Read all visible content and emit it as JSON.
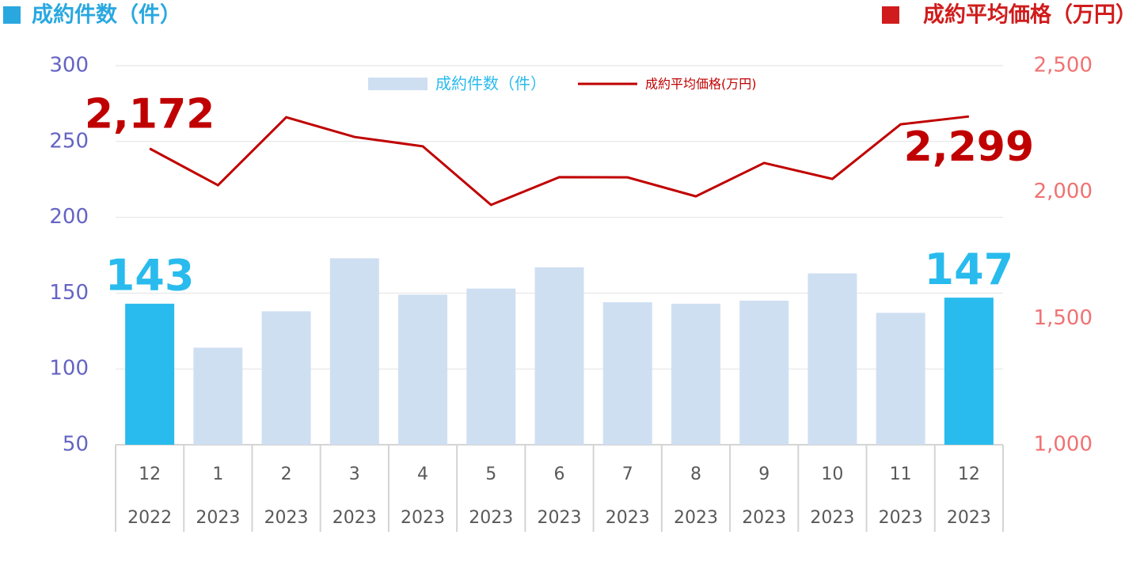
{
  "chart_data": {
    "type": "bar-line",
    "y_title": "成約件数（件）",
    "y2_title": "成約平均価格（万円）",
    "categories": [
      "12",
      "1",
      "2",
      "3",
      "4",
      "5",
      "6",
      "7",
      "8",
      "9",
      "10",
      "11",
      "12"
    ],
    "category_years": [
      "2022",
      "2023",
      "2023",
      "2023",
      "2023",
      "2023",
      "2023",
      "2023",
      "2023",
      "2023",
      "2023",
      "2023",
      "2023"
    ],
    "series": [
      {
        "name": "成約件数（件）",
        "type": "bar",
        "color": "#cfdff2",
        "highlight_color": "#29bbed",
        "values": [
          143,
          114,
          138,
          173,
          149,
          153,
          167,
          144,
          143,
          145,
          163,
          137,
          147
        ],
        "value_labels": [
          "143",
          null,
          null,
          null,
          null,
          null,
          null,
          null,
          null,
          null,
          null,
          null,
          "147"
        ]
      },
      {
        "name": "成約平均価格(万円)",
        "type": "line",
        "axis": "y2",
        "color": "#c00000",
        "values": [
          2172,
          2027,
          2296,
          2218,
          2181,
          1949,
          2059,
          2058,
          1983,
          2115,
          2052,
          2268,
          2299
        ],
        "value_labels": [
          "2,172",
          null,
          null,
          null,
          null,
          null,
          null,
          null,
          null,
          null,
          null,
          null,
          "2,299"
        ]
      }
    ],
    "ylim": [
      50,
      300
    ],
    "yticks": [
      50,
      100,
      150,
      200,
      250,
      300
    ],
    "y2lim": [
      1000,
      2500
    ],
    "y2ticks": [
      {
        "value": 1000,
        "label": "1,000"
      },
      {
        "value": 1500,
        "label": "1,500"
      },
      {
        "value": 2000,
        "label": "2,000"
      },
      {
        "value": 2500,
        "label": "2,500"
      }
    ],
    "grid": true,
    "legend": "top"
  }
}
